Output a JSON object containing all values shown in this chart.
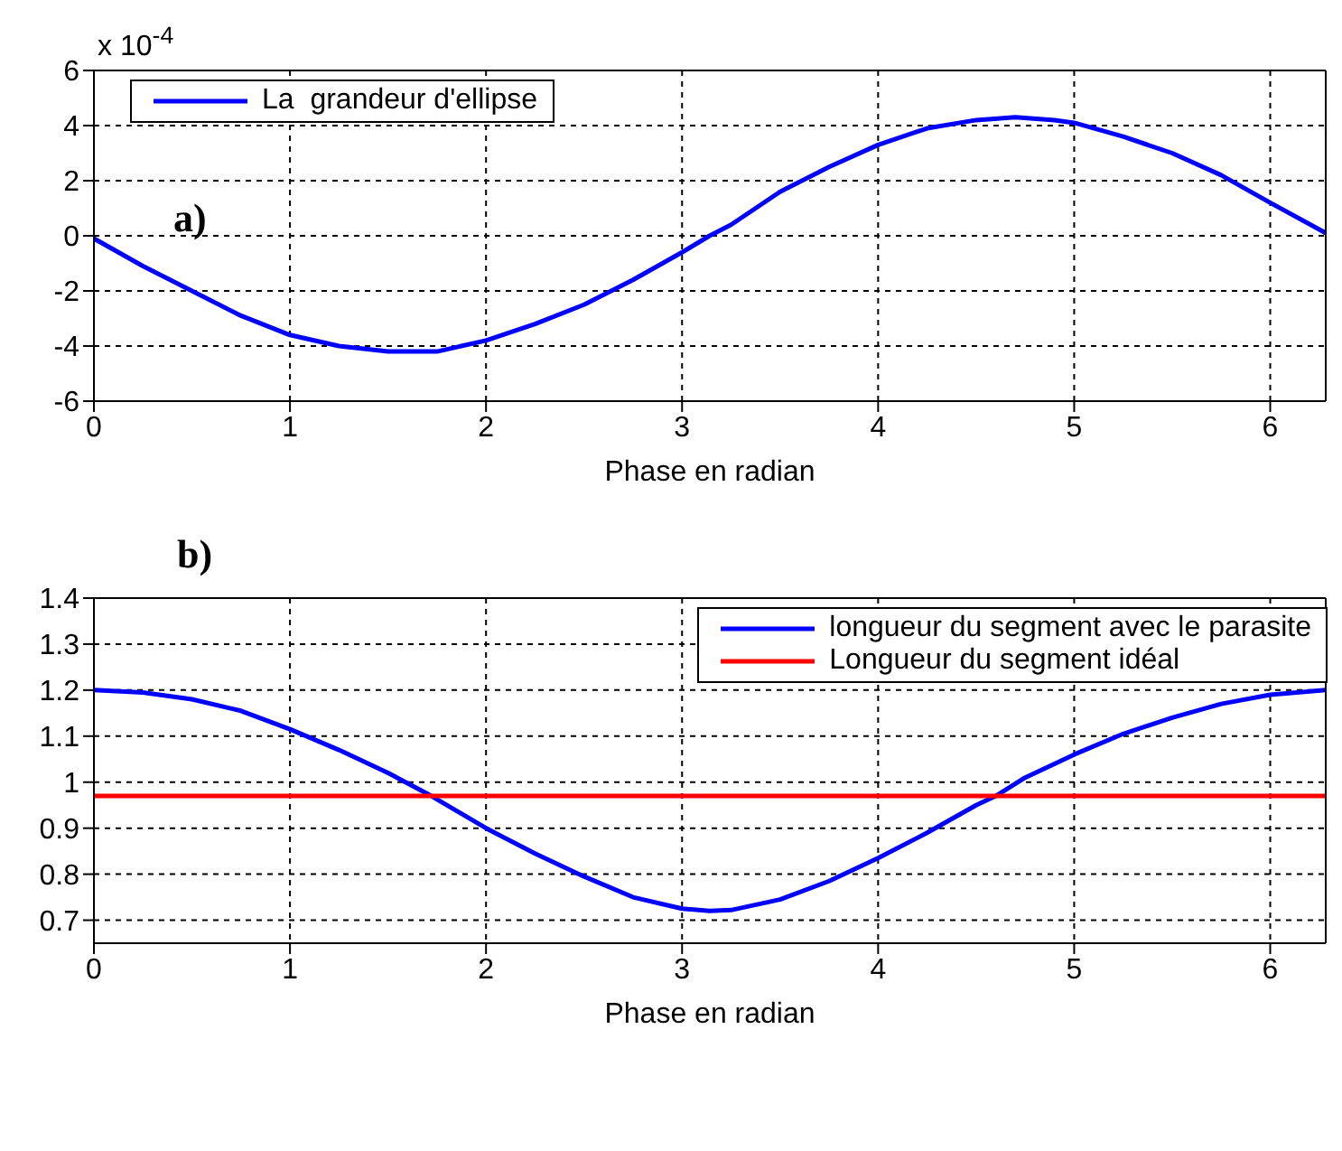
{
  "chart_data": [
    {
      "type": "line",
      "xlabel": "Phase en radian",
      "annotations": [
        "x 10$^{-4}$",
        "a)"
      ],
      "legend": "top left",
      "grid": true,
      "line_style": "solid",
      "xlim": [
        0,
        6.2832
      ],
      "xticks": [
        0,
        1,
        2,
        3,
        4,
        5,
        6
      ],
      "ylim": [
        -6,
        6
      ],
      "yticks": [
        -6,
        -4,
        -2,
        0,
        2,
        4,
        6
      ],
      "x": [
        0,
        0.25,
        0.5,
        0.75,
        1,
        1.25,
        1.5,
        1.6,
        1.75,
        2,
        2.25,
        2.5,
        2.75,
        3,
        3.14,
        3.25,
        3.5,
        3.75,
        4,
        4.25,
        4.5,
        4.7,
        4.9,
        5,
        5.25,
        5.5,
        5.75,
        6,
        6.2832
      ],
      "series": [
        {
          "name": "La  grandeur d'ellipse",
          "color": "#0000ff",
          "values": [
            -0.1,
            -1.1,
            -2.0,
            -2.9,
            -3.6,
            -4.0,
            -4.2,
            -4.2,
            -4.2,
            -3.8,
            -3.2,
            -2.5,
            -1.6,
            -0.6,
            0,
            0.4,
            1.6,
            2.5,
            3.3,
            3.9,
            4.2,
            4.3,
            4.2,
            4.1,
            3.6,
            3.0,
            2.2,
            1.2,
            0.1
          ]
        }
      ]
    },
    {
      "type": "line",
      "xlabel": "Phase en radian",
      "annotations": [
        "b)"
      ],
      "legend": "top right",
      "grid": true,
      "line_style": "solid",
      "xlim": [
        0,
        6.2832
      ],
      "xticks": [
        0,
        1,
        2,
        3,
        4,
        5,
        6
      ],
      "ylim": [
        0.65,
        1.4
      ],
      "yticks": [
        0.7,
        0.8,
        0.9,
        1,
        1.1,
        1.2,
        1.3,
        1.4
      ],
      "series": [
        {
          "name": "longueur du segment avec le parasite",
          "color": "#0000ff",
          "x": [
            0,
            0.25,
            0.5,
            0.75,
            1,
            1.25,
            1.5,
            1.7,
            2,
            2.25,
            2.5,
            2.75,
            3,
            3.14,
            3.25,
            3.5,
            3.75,
            4,
            4.25,
            4.5,
            4.6,
            4.75,
            5,
            5.25,
            5.5,
            5.75,
            6,
            6.2832
          ],
          "values": [
            1.2,
            1.195,
            1.18,
            1.155,
            1.115,
            1.07,
            1.02,
            0.975,
            0.9,
            0.845,
            0.795,
            0.75,
            0.725,
            0.72,
            0.722,
            0.745,
            0.785,
            0.835,
            0.89,
            0.95,
            0.97,
            1.01,
            1.06,
            1.105,
            1.14,
            1.17,
            1.19,
            1.2
          ]
        },
        {
          "name": "Longueur du segment idéal",
          "color": "#ff0000",
          "x": [
            0,
            6.2832
          ],
          "values": [
            0.97,
            0.97
          ]
        }
      ]
    }
  ]
}
